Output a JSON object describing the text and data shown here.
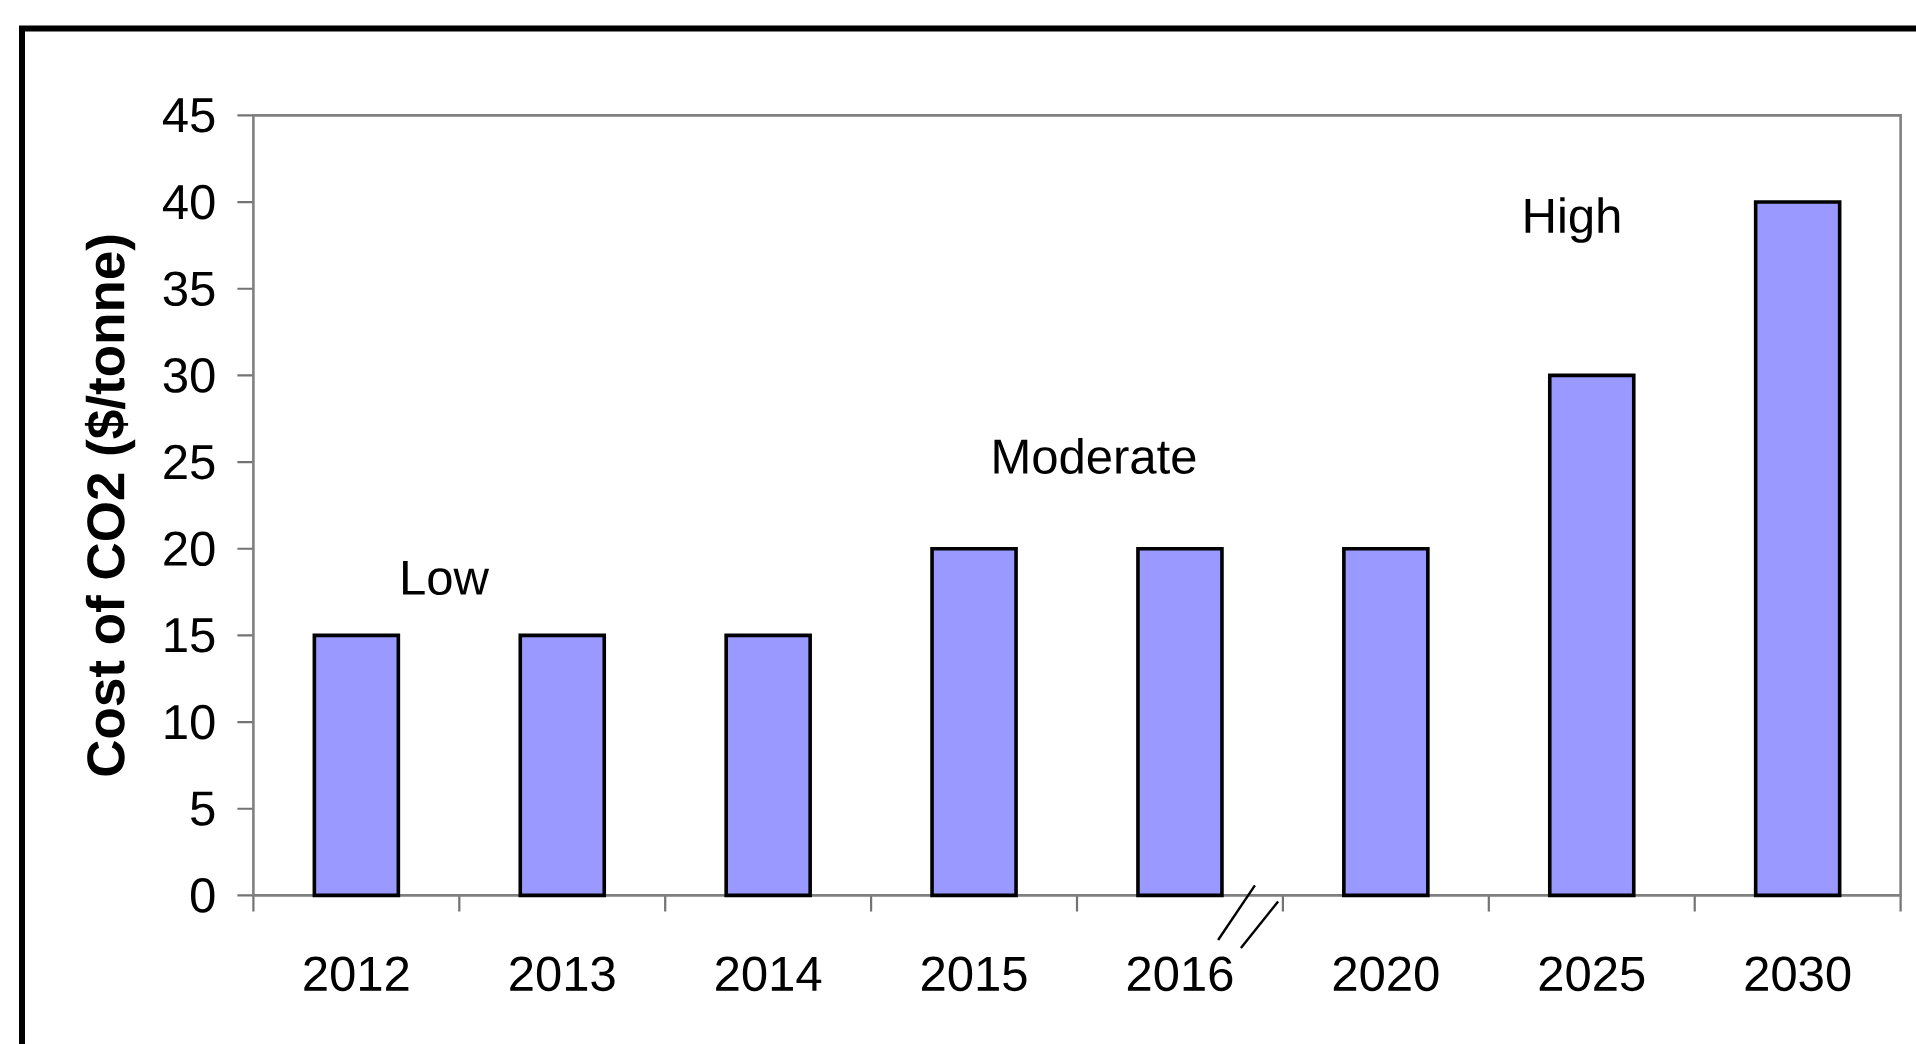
{
  "chart_data": {
    "type": "bar",
    "ylabel": "Cost of CO2 ($/tonne)",
    "categories": [
      "2012",
      "2013",
      "2014",
      "2015",
      "2016",
      "2020",
      "2025",
      "2030"
    ],
    "values": [
      15,
      15,
      15,
      20,
      20,
      20,
      30,
      40
    ],
    "color": "#9999ff",
    "ylim": [
      0,
      45
    ],
    "yticks": [
      0,
      5,
      10,
      15,
      20,
      25,
      30,
      35,
      40,
      45
    ],
    "annotations": [
      "Low",
      "Moderate",
      "High"
    ]
  }
}
